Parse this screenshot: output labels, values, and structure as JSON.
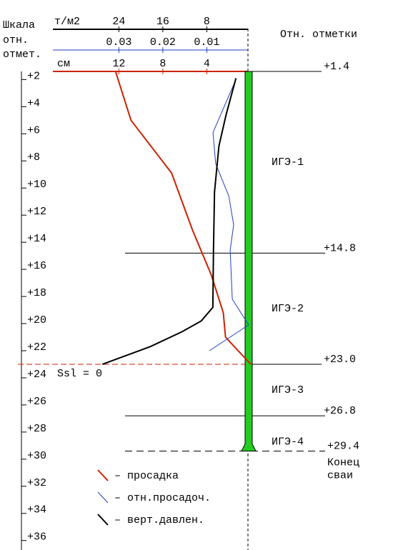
{
  "chart_data": {
    "type": "profile",
    "scale_title": [
      "Шкала",
      "отн.",
      "отмет."
    ],
    "levels_title": "Отн. отметки",
    "ylim": [
      1.4,
      36.7
    ],
    "yticks": [
      {
        "value": 2,
        "label": "+2"
      },
      {
        "value": 4,
        "label": "+4"
      },
      {
        "value": 6,
        "label": "+6"
      },
      {
        "value": 8,
        "label": "+8"
      },
      {
        "value": 10,
        "label": "+10"
      },
      {
        "value": 12,
        "label": "+12"
      },
      {
        "value": 14,
        "label": "+14"
      },
      {
        "value": 16,
        "label": "+16"
      },
      {
        "value": 18,
        "label": "+18"
      },
      {
        "value": 20,
        "label": "+20"
      },
      {
        "value": 22,
        "label": "+22"
      },
      {
        "value": 24,
        "label": "+24"
      },
      {
        "value": 26,
        "label": "+26"
      },
      {
        "value": 28,
        "label": "+28"
      },
      {
        "value": 30,
        "label": "+30"
      },
      {
        "value": 32,
        "label": "+32"
      },
      {
        "value": 34,
        "label": "+34"
      },
      {
        "value": 36,
        "label": "+36"
      }
    ],
    "x_axes": [
      {
        "unit": "т/м2",
        "xlim": [
          36,
          0
        ],
        "xticks": [
          24,
          16,
          8
        ],
        "color": "#000000"
      },
      {
        "xlim": [
          0.045,
          0
        ],
        "xticks": [
          0.03,
          0.02,
          0.01
        ],
        "color": "#1f3fbf"
      },
      {
        "unit": "см",
        "xlim": [
          18,
          0
        ],
        "xticks": [
          12,
          8,
          4
        ],
        "color": "#cc2200"
      }
    ],
    "series": [
      {
        "name": "– просадка",
        "color": "#cc2200",
        "axis": 2,
        "values": [
          12.3,
          10.9,
          7.2,
          5.3,
          3.6,
          2.5,
          2.3,
          0
        ],
        "depth": [
          1.4,
          5.0,
          8.9,
          13.1,
          16.4,
          19.2,
          21.0,
          23.0
        ]
      },
      {
        "name": "– отн.просадоч.",
        "color": "#1f3fbf",
        "axis": 1,
        "values": [
          0.0034,
          0.0086,
          0.008,
          0.005,
          0.0039,
          0.0047,
          0.0042,
          0.0005,
          0.0094
        ],
        "depth": [
          2.0,
          5.9,
          8.2,
          10.6,
          12.7,
          14.6,
          18.2,
          20.1,
          22.0
        ]
      },
      {
        "name": "– верт.давлен.",
        "color": "#000000",
        "axis": 0,
        "values": [
          2.7,
          4.5,
          5.8,
          6.6,
          6.8,
          6.9,
          9.0,
          12.5,
          18.3,
          27.0
        ],
        "depth": [
          1.9,
          4.6,
          6.9,
          10.3,
          14.8,
          18.8,
          19.8,
          20.6,
          21.7,
          23.0
        ]
      }
    ],
    "levels": [
      {
        "value": 1.4,
        "label": "+1.4"
      },
      {
        "value": 14.8,
        "label": "+14.8"
      },
      {
        "value": 23.0,
        "label": "+23.0"
      },
      {
        "value": 26.8,
        "label": "+26.8"
      },
      {
        "value": 29.4,
        "label": "+29.4"
      }
    ],
    "layers": [
      "ИГЭ-1",
      "ИГЭ-2",
      "ИГЭ-3",
      "ИГЭ-4"
    ],
    "pile_tip_label": [
      "Конец",
      "сваи"
    ],
    "annotation": "Ssl = 0",
    "pile_color": "#22cc22"
  }
}
